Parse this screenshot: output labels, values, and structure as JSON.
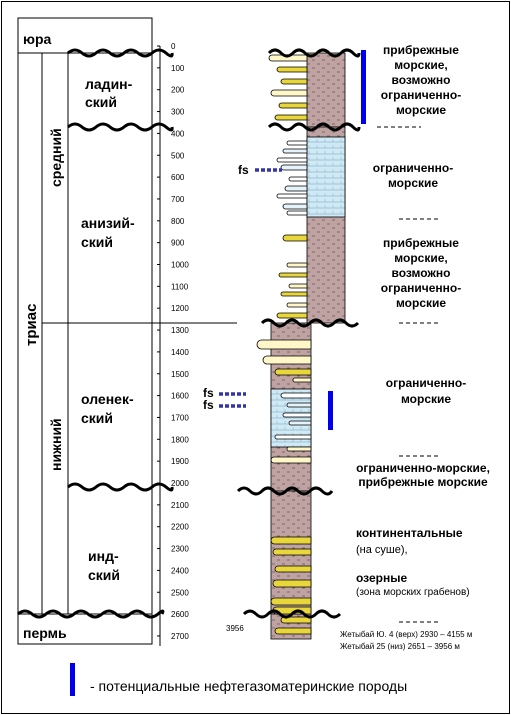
{
  "stratigraphy": {
    "top_unit": "юра",
    "bottom_unit": "пермь",
    "system": "триас",
    "series": [
      "средний",
      "нижний"
    ],
    "stages": [
      {
        "line1": "ладин-",
        "line2": "ский"
      },
      {
        "line1": "анизий-",
        "line2": "ский"
      },
      {
        "line1": "оленек-",
        "line2": "ский"
      },
      {
        "line1": "инд-",
        "line2": "ский"
      }
    ]
  },
  "depth_scale": {
    "ticks": [
      0,
      100,
      200,
      300,
      400,
      500,
      600,
      700,
      800,
      900,
      1000,
      1100,
      1200,
      1300,
      1400,
      1500,
      1600,
      1700,
      1800,
      1900,
      2000,
      2100,
      2200,
      2300,
      2400,
      2500,
      2600,
      2700
    ]
  },
  "well_bottom_label": "3956",
  "fs_markers": [
    "fs",
    "fs",
    "fs"
  ],
  "environments": [
    {
      "lines": [
        "прибрежные",
        "морские,",
        "возможно",
        "ограниченно-",
        "морские"
      ]
    },
    {
      "lines": [
        "ограниченно-",
        "морские"
      ]
    },
    {
      "lines": [
        "прибрежные",
        "морские,",
        "возможно",
        "ограниченно-",
        "морские"
      ]
    },
    {
      "lines": [
        "ограниченно-",
        "морские"
      ]
    },
    {
      "lines": [
        "ограниченно-морские,",
        "прибрежные морские"
      ]
    },
    {
      "lines": [
        "континентальные"
      ]
    },
    {
      "lines": [
        "(на суше),"
      ]
    },
    {
      "lines": [
        "озерные"
      ]
    },
    {
      "lines": [
        "(зона морских грабенов)"
      ]
    }
  ],
  "wells": [
    "Жетыбай Ю. 4 (верх) 2930 – 4155 м",
    "Жетыбай 25 (низ) 2651 – 3956 м"
  ],
  "legend": {
    "text": "- потенциальные нефтегазоматеринские породы",
    "color": "#0000ee"
  },
  "colors": {
    "shale": "#bfa3a3",
    "sand": "#e8d63a",
    "sand_light": "#fff7c8",
    "lagoon": "#cfe9f5",
    "fs": "#3333aa"
  }
}
